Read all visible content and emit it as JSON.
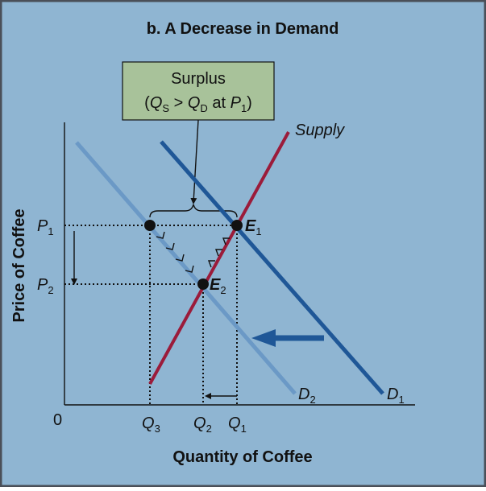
{
  "title": "b. A Decrease in Demand",
  "surplus": {
    "line1": "Surplus",
    "line2_open": "(",
    "q": "Q",
    "s_sub": "S",
    "gt": " > ",
    "d_sub": "D",
    "at": " at ",
    "p": "P",
    "one_sub": "1",
    "line2_close": ")"
  },
  "curves": {
    "supply": "Supply",
    "d1_letter": "D",
    "d1_sub": "1",
    "d2_letter": "D",
    "d2_sub": "2"
  },
  "points": {
    "e1_letter": "E",
    "e1_sub": "1",
    "e2_letter": "E",
    "e2_sub": "2"
  },
  "axes": {
    "origin": "0",
    "ylabel": "Price of Coffee",
    "xlabel": "Quantity of Coffee",
    "p_letter": "P",
    "p1_sub": "1",
    "p2_sub": "2",
    "q_letter": "Q",
    "q3_sub": "3",
    "q2_sub": "2",
    "q1_sub": "1"
  },
  "colors": {
    "background": "#8fb5d2",
    "border": "#4a4f58",
    "supply": "#9b1b3a",
    "demand1": "#1f5797",
    "demand2": "#6b99c6",
    "shift_arrow": "#1f5797",
    "surplus_box": "#a8c29a"
  }
}
